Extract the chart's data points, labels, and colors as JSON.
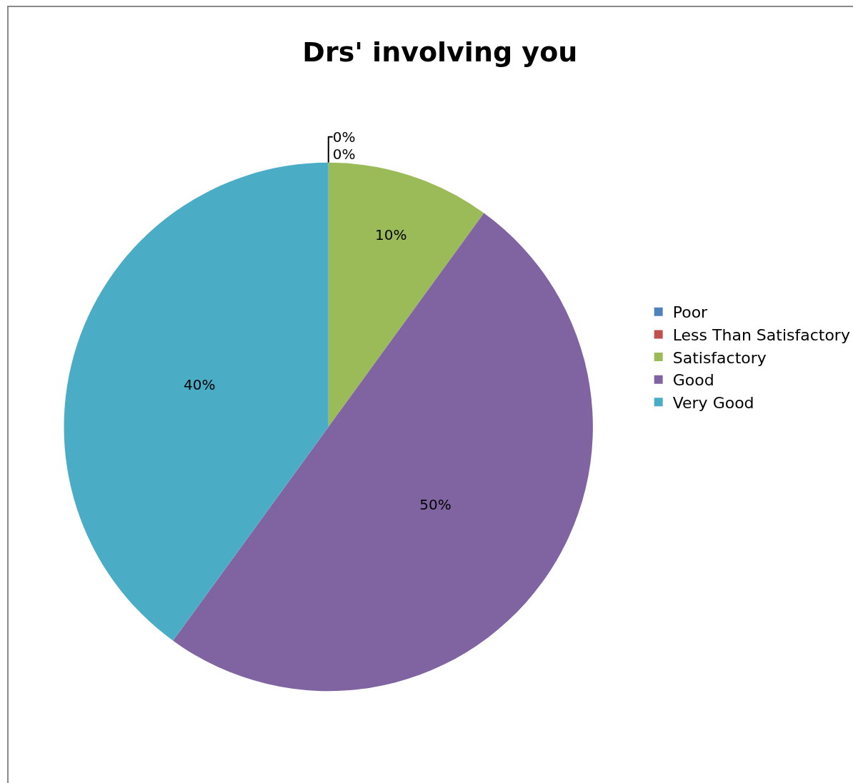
{
  "chart_data": {
    "type": "pie",
    "title": "Drs' involving you",
    "categories": [
      "Poor",
      "Less Than Satisfactory",
      "Satisfactory",
      "Good",
      "Very Good"
    ],
    "values": [
      0,
      0,
      10,
      50,
      40
    ],
    "colors": [
      "#4f81bd",
      "#c0504d",
      "#9bbb59",
      "#8064a2",
      "#4bacc6"
    ],
    "value_labels": [
      "0%",
      "0%",
      "10%",
      "50%",
      "40%"
    ],
    "legend": "right"
  }
}
